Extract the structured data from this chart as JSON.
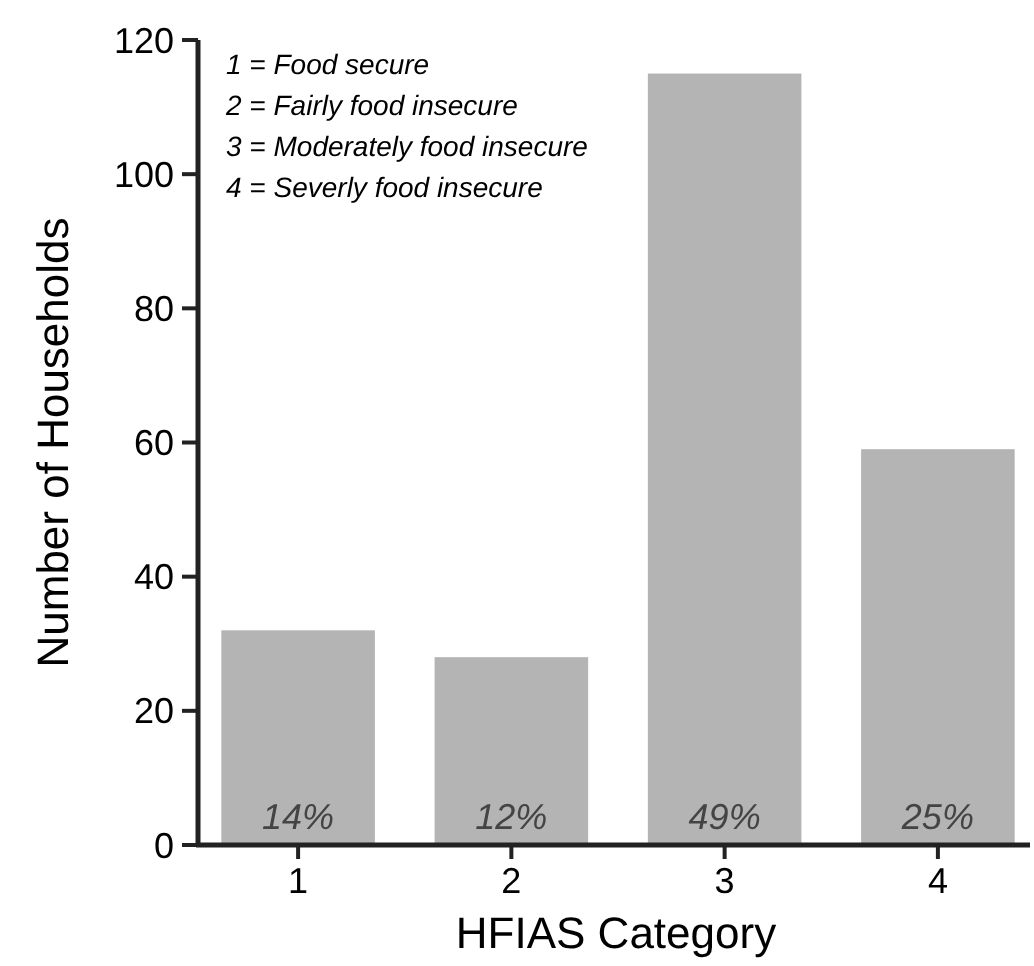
{
  "chart_data": {
    "type": "bar",
    "xlabel": "HFIAS Category",
    "ylabel": "Number of Households",
    "categories": [
      "1",
      "2",
      "3",
      "4"
    ],
    "values": [
      32,
      28,
      115,
      59
    ],
    "color": "#b4b4b4",
    "ylim": [
      0,
      120
    ],
    "yticks": [
      0,
      20,
      40,
      60,
      80,
      100,
      120
    ],
    "annotations": [
      "1 = Food secure",
      "2 = Fairly food insecure",
      "3 = Moderately food insecure",
      "4 = Severly food insecure",
      {
        "text": "14%",
        "x": "1",
        "y": 0
      },
      {
        "text": "12%",
        "x": "2",
        "y": 0
      },
      {
        "text": "49%",
        "x": "3",
        "y": 0
      },
      {
        "text": "25%",
        "x": "4",
        "y": 0
      }
    ]
  }
}
